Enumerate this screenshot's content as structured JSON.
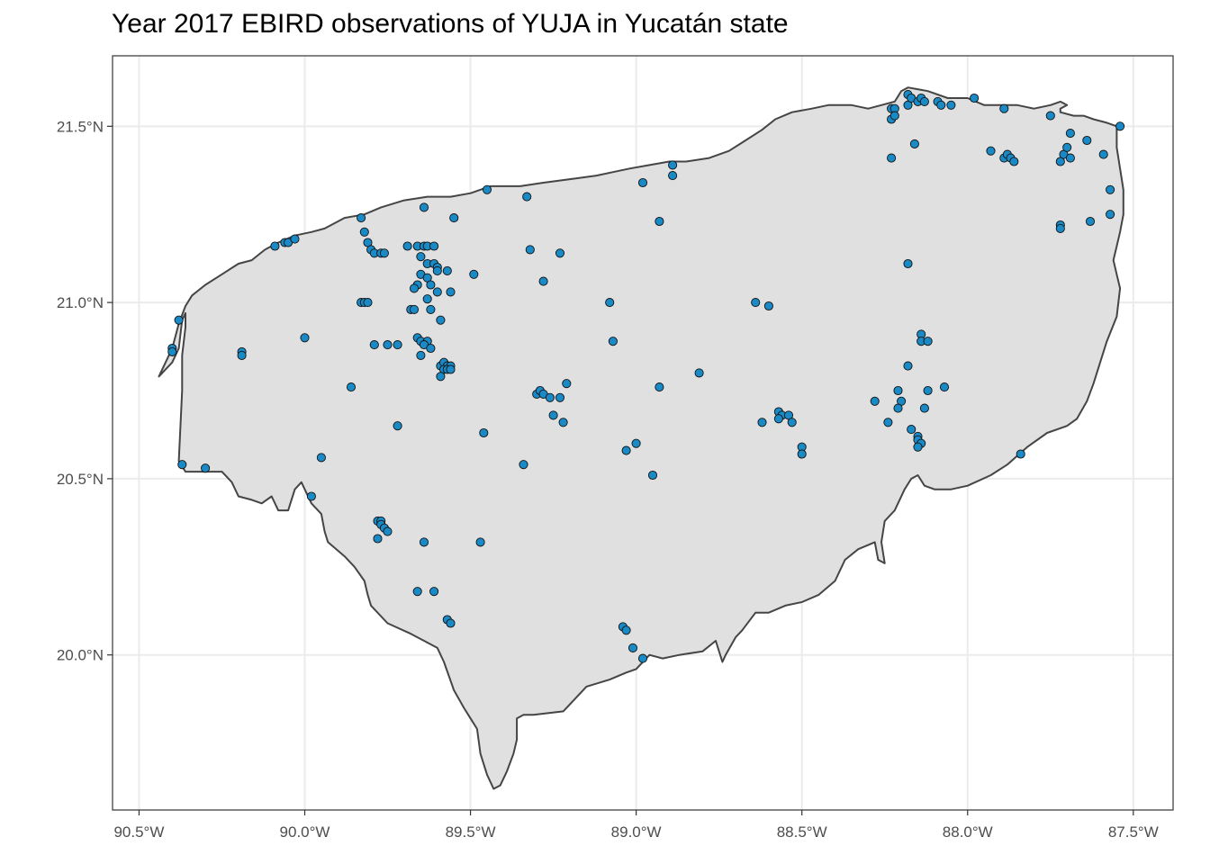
{
  "title": "Year 2017 EBIRD observations of YUJA in Yucatán state",
  "map": {
    "projection": "lon-lat",
    "x_range": [
      -90.58,
      -87.38
    ],
    "y_range": [
      19.56,
      21.7
    ],
    "grid": true,
    "x_ticks": [
      {
        "value": -90.5,
        "label": "90.5°W"
      },
      {
        "value": -90.0,
        "label": "90.0°W"
      },
      {
        "value": -89.5,
        "label": "89.5°W"
      },
      {
        "value": -89.0,
        "label": "89.0°W"
      },
      {
        "value": -88.5,
        "label": "88.5°W"
      },
      {
        "value": -88.0,
        "label": "88.0°W"
      },
      {
        "value": -87.5,
        "label": "87.5°W"
      }
    ],
    "y_ticks": [
      {
        "value": 20.0,
        "label": "20.0°N"
      },
      {
        "value": 20.5,
        "label": "20.5°N"
      },
      {
        "value": 21.0,
        "label": "21.0°N"
      },
      {
        "value": 21.5,
        "label": "21.5°N"
      }
    ],
    "colors": {
      "land_fill": "#e0e0e0",
      "land_stroke": "#454545",
      "point_fill": "#1a8ac6",
      "point_stroke": "#111111",
      "grid": "#ebebeb",
      "panel_border": "#333333"
    },
    "outline": [
      [
        -90.44,
        20.79
      ],
      [
        -90.4,
        20.83
      ],
      [
        -90.38,
        20.87
      ],
      [
        -90.37,
        20.95
      ],
      [
        -90.36,
        20.97
      ],
      [
        -90.36,
        20.93
      ],
      [
        -90.37,
        20.85
      ],
      [
        -90.37,
        20.75
      ],
      [
        -90.38,
        20.55
      ],
      [
        -90.36,
        20.52
      ],
      [
        -90.25,
        20.52
      ],
      [
        -90.22,
        20.49
      ],
      [
        -90.2,
        20.45
      ],
      [
        -90.16,
        20.44
      ],
      [
        -90.13,
        20.43
      ],
      [
        -90.1,
        20.45
      ],
      [
        -90.08,
        20.41
      ],
      [
        -90.05,
        20.41
      ],
      [
        -90.03,
        20.47
      ],
      [
        -90.01,
        20.49
      ],
      [
        -90.0,
        20.47
      ],
      [
        -89.98,
        20.43
      ],
      [
        -89.95,
        20.4
      ],
      [
        -89.94,
        20.35
      ],
      [
        -89.93,
        20.32
      ],
      [
        -89.88,
        20.28
      ],
      [
        -89.85,
        20.25
      ],
      [
        -89.82,
        20.21
      ],
      [
        -89.81,
        20.17
      ],
      [
        -89.8,
        20.14
      ],
      [
        -89.75,
        20.09
      ],
      [
        -89.68,
        20.06
      ],
      [
        -89.64,
        20.04
      ],
      [
        -89.6,
        20.02
      ],
      [
        -89.58,
        19.98
      ],
      [
        -89.55,
        19.9
      ],
      [
        -89.52,
        19.85
      ],
      [
        -89.5,
        19.82
      ],
      [
        -89.48,
        19.79
      ],
      [
        -89.47,
        19.72
      ],
      [
        -89.45,
        19.66
      ],
      [
        -89.43,
        19.62
      ],
      [
        -89.41,
        19.63
      ],
      [
        -89.39,
        19.67
      ],
      [
        -89.37,
        19.72
      ],
      [
        -89.36,
        19.76
      ],
      [
        -89.36,
        19.82
      ],
      [
        -89.34,
        19.83
      ],
      [
        -89.31,
        19.83
      ],
      [
        -89.22,
        19.84
      ],
      [
        -89.18,
        19.88
      ],
      [
        -89.15,
        19.91
      ],
      [
        -89.08,
        19.93
      ],
      [
        -89.03,
        19.95
      ],
      [
        -89.0,
        19.96
      ],
      [
        -88.96,
        20.0
      ],
      [
        -88.92,
        19.99
      ],
      [
        -88.87,
        20.0
      ],
      [
        -88.8,
        20.01
      ],
      [
        -88.76,
        20.04
      ],
      [
        -88.74,
        19.98
      ],
      [
        -88.73,
        20.0
      ],
      [
        -88.7,
        20.05
      ],
      [
        -88.68,
        20.07
      ],
      [
        -88.64,
        20.12
      ],
      [
        -88.6,
        20.12
      ],
      [
        -88.55,
        20.14
      ],
      [
        -88.5,
        20.15
      ],
      [
        -88.45,
        20.17
      ],
      [
        -88.4,
        20.21
      ],
      [
        -88.37,
        20.27
      ],
      [
        -88.33,
        20.3
      ],
      [
        -88.28,
        20.32
      ],
      [
        -88.27,
        20.27
      ],
      [
        -88.25,
        20.26
      ],
      [
        -88.26,
        20.32
      ],
      [
        -88.25,
        20.38
      ],
      [
        -88.22,
        20.41
      ],
      [
        -88.19,
        20.47
      ],
      [
        -88.17,
        20.5
      ],
      [
        -88.15,
        20.51
      ],
      [
        -88.13,
        20.48
      ],
      [
        -88.1,
        20.47
      ],
      [
        -88.05,
        20.47
      ],
      [
        -88.0,
        20.48
      ],
      [
        -87.93,
        20.51
      ],
      [
        -87.88,
        20.54
      ],
      [
        -87.82,
        20.59
      ],
      [
        -87.76,
        20.63
      ],
      [
        -87.7,
        20.65
      ],
      [
        -87.67,
        20.67
      ],
      [
        -87.64,
        20.72
      ],
      [
        -87.62,
        20.77
      ],
      [
        -87.6,
        20.83
      ],
      [
        -87.58,
        20.89
      ],
      [
        -87.55,
        20.96
      ],
      [
        -87.54,
        21.04
      ],
      [
        -87.55,
        21.08
      ],
      [
        -87.56,
        21.12
      ],
      [
        -87.55,
        21.16
      ],
      [
        -87.54,
        21.2
      ],
      [
        -87.53,
        21.25
      ],
      [
        -87.53,
        21.32
      ],
      [
        -87.54,
        21.38
      ],
      [
        -87.55,
        21.44
      ],
      [
        -87.55,
        21.5
      ],
      [
        -87.58,
        21.51
      ],
      [
        -87.62,
        21.52
      ],
      [
        -87.65,
        21.53
      ],
      [
        -87.68,
        21.53
      ],
      [
        -87.72,
        21.54
      ],
      [
        -87.72,
        21.55
      ],
      [
        -87.7,
        21.56
      ],
      [
        -87.72,
        21.57
      ],
      [
        -87.75,
        21.56
      ],
      [
        -87.8,
        21.55
      ],
      [
        -87.85,
        21.56
      ],
      [
        -87.9,
        21.56
      ],
      [
        -87.95,
        21.56
      ],
      [
        -88.0,
        21.58
      ],
      [
        -88.06,
        21.58
      ],
      [
        -88.12,
        21.6
      ],
      [
        -88.18,
        21.61
      ],
      [
        -88.2,
        21.6
      ],
      [
        -88.22,
        21.57
      ],
      [
        -88.26,
        21.56
      ],
      [
        -88.3,
        21.55
      ],
      [
        -88.35,
        21.56
      ],
      [
        -88.42,
        21.56
      ],
      [
        -88.47,
        21.55
      ],
      [
        -88.53,
        21.54
      ],
      [
        -88.58,
        21.52
      ],
      [
        -88.62,
        21.49
      ],
      [
        -88.67,
        21.46
      ],
      [
        -88.72,
        21.43
      ],
      [
        -88.78,
        21.41
      ],
      [
        -88.85,
        21.4
      ],
      [
        -88.9,
        21.4
      ],
      [
        -88.96,
        21.39
      ],
      [
        -89.02,
        21.38
      ],
      [
        -89.07,
        21.37
      ],
      [
        -89.12,
        21.36
      ],
      [
        -89.2,
        21.35
      ],
      [
        -89.28,
        21.34
      ],
      [
        -89.35,
        21.33
      ],
      [
        -89.44,
        21.33
      ],
      [
        -89.5,
        21.31
      ],
      [
        -89.56,
        21.3
      ],
      [
        -89.63,
        21.3
      ],
      [
        -89.7,
        21.29
      ],
      [
        -89.77,
        21.27
      ],
      [
        -89.82,
        21.25
      ],
      [
        -89.88,
        21.24
      ],
      [
        -89.94,
        21.21
      ],
      [
        -89.98,
        21.2
      ],
      [
        -90.03,
        21.19
      ],
      [
        -90.08,
        21.17
      ],
      [
        -90.12,
        21.15
      ],
      [
        -90.16,
        21.12
      ],
      [
        -90.2,
        21.11
      ],
      [
        -90.25,
        21.08
      ],
      [
        -90.3,
        21.05
      ],
      [
        -90.34,
        21.02
      ],
      [
        -90.36,
        20.99
      ],
      [
        -90.38,
        20.94
      ],
      [
        -90.4,
        20.87
      ],
      [
        -90.42,
        20.83
      ],
      [
        -90.44,
        20.79
      ]
    ],
    "observations": [
      [
        -90.38,
        20.95
      ],
      [
        -90.4,
        20.87
      ],
      [
        -90.4,
        20.86
      ],
      [
        -90.37,
        20.54
      ],
      [
        -90.3,
        20.53
      ],
      [
        -90.19,
        20.86
      ],
      [
        -90.19,
        20.85
      ],
      [
        -90.09,
        21.16
      ],
      [
        -90.06,
        21.17
      ],
      [
        -90.05,
        21.17
      ],
      [
        -90.03,
        21.18
      ],
      [
        -90.0,
        20.9
      ],
      [
        -89.98,
        20.45
      ],
      [
        -89.95,
        20.56
      ],
      [
        -89.86,
        20.76
      ],
      [
        -89.83,
        21.24
      ],
      [
        -89.82,
        21.2
      ],
      [
        -89.81,
        21.17
      ],
      [
        -89.8,
        21.15
      ],
      [
        -89.79,
        21.14
      ],
      [
        -89.77,
        21.14
      ],
      [
        -89.76,
        21.14
      ],
      [
        -89.83,
        21.0
      ],
      [
        -89.82,
        21.0
      ],
      [
        -89.81,
        21.0
      ],
      [
        -89.79,
        20.88
      ],
      [
        -89.75,
        20.88
      ],
      [
        -89.72,
        20.88
      ],
      [
        -89.72,
        20.65
      ],
      [
        -89.78,
        20.38
      ],
      [
        -89.77,
        20.38
      ],
      [
        -89.77,
        20.37
      ],
      [
        -89.76,
        20.36
      ],
      [
        -89.75,
        20.35
      ],
      [
        -89.78,
        20.33
      ],
      [
        -89.69,
        21.16
      ],
      [
        -89.66,
        21.16
      ],
      [
        -89.64,
        21.16
      ],
      [
        -89.63,
        21.16
      ],
      [
        -89.61,
        21.16
      ],
      [
        -89.65,
        21.13
      ],
      [
        -89.63,
        21.11
      ],
      [
        -89.61,
        21.11
      ],
      [
        -89.6,
        21.1
      ],
      [
        -89.6,
        21.09
      ],
      [
        -89.57,
        21.09
      ],
      [
        -89.65,
        21.08
      ],
      [
        -89.63,
        21.07
      ],
      [
        -89.66,
        21.05
      ],
      [
        -89.67,
        21.04
      ],
      [
        -89.62,
        21.05
      ],
      [
        -89.6,
        21.03
      ],
      [
        -89.56,
        21.03
      ],
      [
        -89.63,
        21.01
      ],
      [
        -89.68,
        20.98
      ],
      [
        -89.67,
        20.98
      ],
      [
        -89.62,
        20.98
      ],
      [
        -89.59,
        20.95
      ],
      [
        -89.66,
        20.9
      ],
      [
        -89.65,
        20.89
      ],
      [
        -89.63,
        20.89
      ],
      [
        -89.64,
        20.88
      ],
      [
        -89.62,
        20.87
      ],
      [
        -89.65,
        20.85
      ],
      [
        -89.59,
        20.82
      ],
      [
        -89.58,
        20.83
      ],
      [
        -89.57,
        20.82
      ],
      [
        -89.56,
        20.82
      ],
      [
        -89.58,
        20.81
      ],
      [
        -89.57,
        20.81
      ],
      [
        -89.56,
        20.81
      ],
      [
        -89.59,
        20.79
      ],
      [
        -89.64,
        21.27
      ],
      [
        -89.55,
        21.24
      ],
      [
        -89.45,
        21.32
      ],
      [
        -89.49,
        21.08
      ],
      [
        -89.46,
        20.63
      ],
      [
        -89.34,
        20.54
      ],
      [
        -89.47,
        20.32
      ],
      [
        -89.64,
        20.32
      ],
      [
        -89.66,
        20.18
      ],
      [
        -89.61,
        20.18
      ],
      [
        -89.57,
        20.1
      ],
      [
        -89.56,
        20.09
      ],
      [
        -89.33,
        21.3
      ],
      [
        -89.32,
        21.15
      ],
      [
        -89.23,
        21.14
      ],
      [
        -89.28,
        21.06
      ],
      [
        -89.3,
        20.74
      ],
      [
        -89.29,
        20.75
      ],
      [
        -89.28,
        20.74
      ],
      [
        -89.26,
        20.73
      ],
      [
        -89.23,
        20.73
      ],
      [
        -89.21,
        20.77
      ],
      [
        -89.25,
        20.68
      ],
      [
        -89.22,
        20.66
      ],
      [
        -89.08,
        21.0
      ],
      [
        -89.07,
        20.89
      ],
      [
        -89.03,
        20.58
      ],
      [
        -89.0,
        20.6
      ],
      [
        -88.98,
        21.34
      ],
      [
        -88.93,
        21.23
      ],
      [
        -88.89,
        21.39
      ],
      [
        -88.89,
        21.36
      ],
      [
        -88.93,
        20.76
      ],
      [
        -88.95,
        20.51
      ],
      [
        -88.81,
        20.8
      ],
      [
        -89.04,
        20.08
      ],
      [
        -89.03,
        20.07
      ],
      [
        -89.01,
        20.02
      ],
      [
        -88.98,
        19.99
      ],
      [
        -88.64,
        21.0
      ],
      [
        -88.6,
        20.99
      ],
      [
        -88.57,
        20.69
      ],
      [
        -88.56,
        20.68
      ],
      [
        -88.57,
        20.67
      ],
      [
        -88.54,
        20.68
      ],
      [
        -88.53,
        20.66
      ],
      [
        -88.62,
        20.66
      ],
      [
        -88.5,
        20.59
      ],
      [
        -88.5,
        20.57
      ],
      [
        -88.28,
        20.72
      ],
      [
        -88.24,
        20.66
      ],
      [
        -88.21,
        20.75
      ],
      [
        -88.2,
        20.72
      ],
      [
        -88.21,
        20.7
      ],
      [
        -88.18,
        20.82
      ],
      [
        -88.14,
        20.91
      ],
      [
        -88.14,
        20.89
      ],
      [
        -88.12,
        20.89
      ],
      [
        -88.12,
        20.75
      ],
      [
        -88.07,
        20.76
      ],
      [
        -88.13,
        20.7
      ],
      [
        -88.17,
        20.64
      ],
      [
        -88.15,
        20.62
      ],
      [
        -88.15,
        20.61
      ],
      [
        -88.14,
        20.6
      ],
      [
        -88.15,
        20.59
      ],
      [
        -88.18,
        21.11
      ],
      [
        -88.23,
        21.41
      ],
      [
        -88.16,
        21.45
      ],
      [
        -88.23,
        21.55
      ],
      [
        -88.22,
        21.55
      ],
      [
        -88.23,
        21.52
      ],
      [
        -88.22,
        21.53
      ],
      [
        -88.18,
        21.56
      ],
      [
        -88.18,
        21.59
      ],
      [
        -88.17,
        21.58
      ],
      [
        -88.15,
        21.57
      ],
      [
        -88.14,
        21.58
      ],
      [
        -88.13,
        21.57
      ],
      [
        -88.09,
        21.57
      ],
      [
        -88.08,
        21.56
      ],
      [
        -88.05,
        21.56
      ],
      [
        -87.98,
        21.58
      ],
      [
        -87.89,
        21.55
      ],
      [
        -87.93,
        21.43
      ],
      [
        -87.89,
        21.41
      ],
      [
        -87.88,
        21.42
      ],
      [
        -87.87,
        21.41
      ],
      [
        -87.86,
        21.4
      ],
      [
        -87.75,
        21.53
      ],
      [
        -87.72,
        21.4
      ],
      [
        -87.71,
        21.42
      ],
      [
        -87.7,
        21.44
      ],
      [
        -87.69,
        21.48
      ],
      [
        -87.69,
        21.41
      ],
      [
        -87.64,
        21.46
      ],
      [
        -87.59,
        21.42
      ],
      [
        -87.57,
        21.32
      ],
      [
        -87.57,
        21.25
      ],
      [
        -87.63,
        21.23
      ],
      [
        -87.72,
        21.22
      ],
      [
        -87.72,
        21.21
      ],
      [
        -87.84,
        20.57
      ],
      [
        -87.54,
        21.5
      ]
    ]
  }
}
